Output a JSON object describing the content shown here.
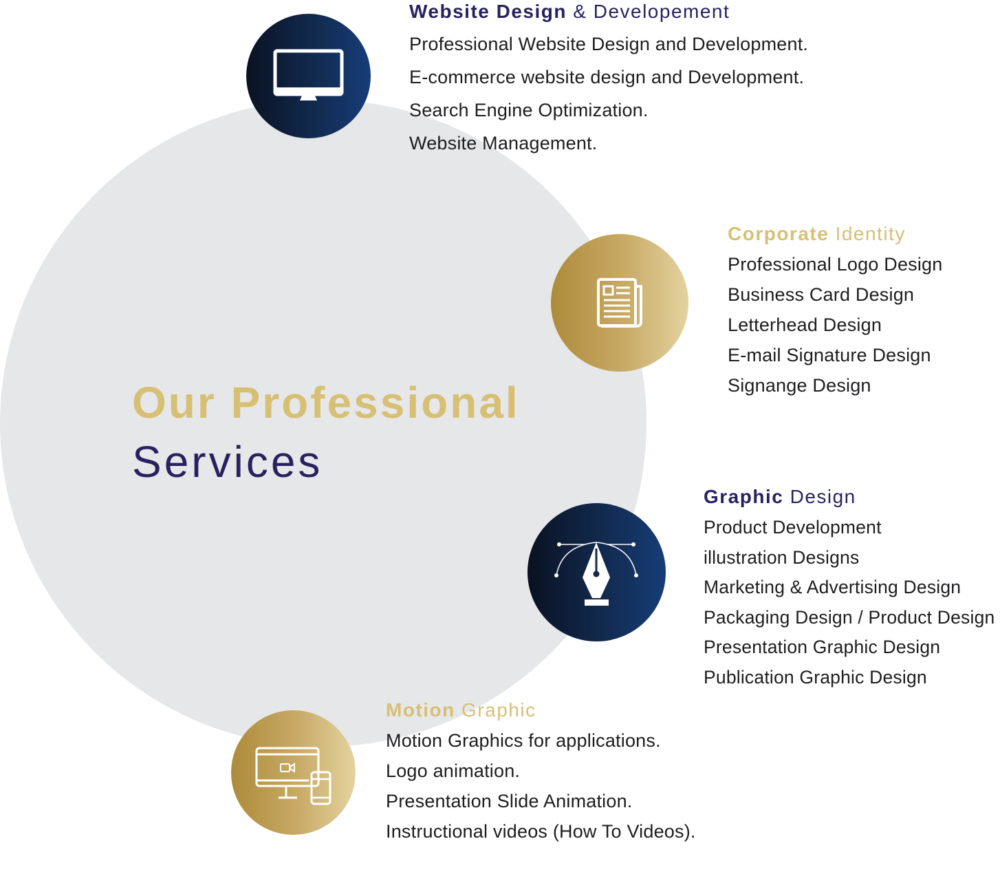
{
  "colors": {
    "navy": "#27225f",
    "gold": "#d7bf74",
    "circle_bg": "#e6e7e9",
    "text": "#1d1d1f"
  },
  "headline": {
    "line1": "Our Professional",
    "line2": "Services"
  },
  "services": {
    "website": {
      "icon": "desktop-monitor-icon",
      "title_strong": "Website Design",
      "title_light": "& Developement",
      "items": [
        "Professional Website Design and Development.",
        "E-commerce website design and Development.",
        "Search Engine Optimization.",
        "Website Management."
      ]
    },
    "corporate": {
      "icon": "newspaper-icon",
      "title_strong": "Corporate",
      "title_light": "Identity",
      "items": [
        "Professional Logo Design",
        "Business Card Design",
        "Letterhead Design",
        "E-mail Signature Design",
        "Signange Design"
      ]
    },
    "graphic": {
      "icon": "pen-tool-icon",
      "title_strong": "Graphic",
      "title_light": "Design",
      "items": [
        "Product Development",
        "illustration Designs",
        "Marketing & Advertising Design",
        "Packaging Design / Product Design",
        "Presentation Graphic Design",
        "Publication Graphic Design"
      ]
    },
    "motion": {
      "icon": "video-devices-icon",
      "title_strong": "Motion",
      "title_light": "Graphic",
      "items": [
        "Motion Graphics for applications.",
        "Logo animation.",
        "Presentation Slide Animation.",
        "Instructional videos (How To Videos)."
      ]
    }
  }
}
